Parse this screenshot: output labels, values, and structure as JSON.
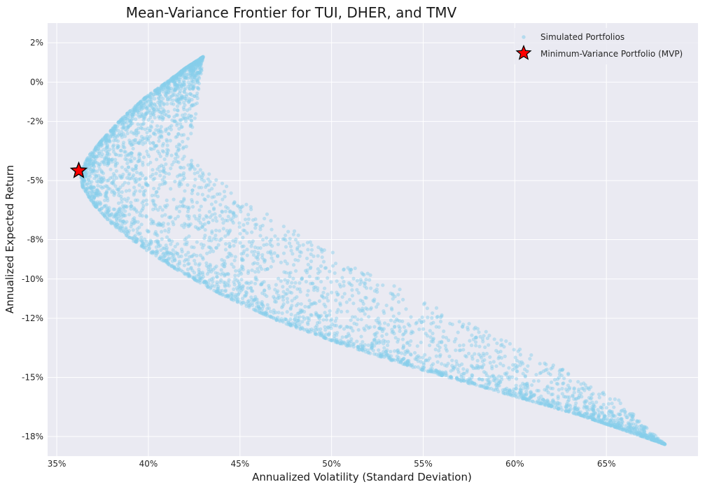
{
  "chart_data": {
    "type": "scatter",
    "title": "Mean-Variance Frontier for TUI, DHER, and TMV",
    "xlabel": "Annualized Volatility (Standard Deviation)",
    "ylabel": "Annualized Expected Return",
    "xlim": [
      34.5,
      70.0
    ],
    "ylim": [
      -19.0,
      3.0
    ],
    "x_ticks": [
      35,
      40,
      45,
      50,
      55,
      60,
      65
    ],
    "x_tick_labels": [
      "35%",
      "40%",
      "45%",
      "50%",
      "55%",
      "60%",
      "65%"
    ],
    "y_ticks": [
      2,
      0,
      -2,
      -5,
      -8,
      -10,
      -12,
      -15,
      -18
    ],
    "y_tick_labels": [
      "2%",
      "0%",
      "-2%",
      "-5%",
      "-8%",
      "-10%",
      "-12%",
      "-15%",
      "-18%"
    ],
    "grid": true,
    "legend_position": "top-right",
    "series": [
      {
        "name": "Simulated Portfolios",
        "marker": "circle",
        "color": "#87ceeb",
        "opacity": 0.45,
        "frontier_curve": [
          [
            43.0,
            1.3
          ],
          [
            42.0,
            0.7
          ],
          [
            41.0,
            0.0
          ],
          [
            39.8,
            -0.8
          ],
          [
            38.6,
            -1.8
          ],
          [
            37.5,
            -2.9
          ],
          [
            36.7,
            -3.8
          ],
          [
            36.3,
            -4.6
          ],
          [
            36.4,
            -5.3
          ],
          [
            37.0,
            -6.2
          ],
          [
            38.0,
            -7.2
          ],
          [
            39.5,
            -8.3
          ],
          [
            41.5,
            -9.5
          ],
          [
            44.0,
            -10.8
          ],
          [
            47.0,
            -12.1
          ],
          [
            50.5,
            -13.3
          ],
          [
            54.5,
            -14.5
          ],
          [
            59.0,
            -15.7
          ],
          [
            63.5,
            -16.9
          ],
          [
            68.2,
            -18.4
          ]
        ],
        "outer_boundary": [
          [
            43.0,
            1.3
          ],
          [
            42.6,
            -1.8
          ],
          [
            42.0,
            -3.6
          ],
          [
            43.5,
            -4.8
          ],
          [
            46.0,
            -6.4
          ],
          [
            49.0,
            -8.1
          ],
          [
            52.5,
            -9.9
          ],
          [
            56.5,
            -11.8
          ],
          [
            61.0,
            -13.8
          ],
          [
            65.5,
            -16.0
          ],
          [
            68.2,
            -18.4
          ]
        ]
      },
      {
        "name": "Minimum-Variance Portfolio (MVP)",
        "marker": "star",
        "color": "#ff0000",
        "points": [
          {
            "x": 36.2,
            "y": -4.5
          }
        ]
      }
    ]
  }
}
